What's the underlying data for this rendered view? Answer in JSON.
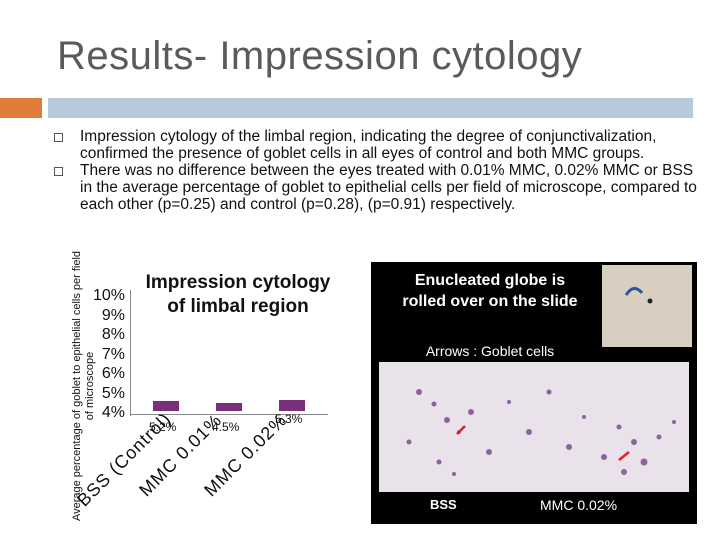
{
  "slide": {
    "title": "Results- Impression cytology",
    "bullets": [
      "Impression cytology of the limbal region, indicating the degree of conjunctivalization, confirmed the presence of goblet cells in all eyes of control and both MMC groups.",
      "There was no difference between the eyes treated with 0.01% MMC, 0.02% MMC or BSS in the average percentage of goblet to epithelial cells per field of microscope, compared to each other (p=0.25) and control (p=0.28), (p=0.91) respectively."
    ]
  },
  "chart_data": {
    "type": "bar",
    "title": "Impression cytology of limbal region",
    "ylabel": "Average percentage of goblet to epithelial cells per field of microscope",
    "yticks": [
      "10%",
      "9%",
      "8%",
      "7%",
      "6%",
      "5%",
      "4%"
    ],
    "ylim": [
      4,
      10
    ],
    "categories": [
      "BSS (Control)",
      "MMC 0.01%",
      "MMC 0.02%"
    ],
    "values": [
      5.2,
      4.5,
      5.3
    ],
    "data_labels": [
      "5.2%",
      "4.5%",
      "5.3%"
    ],
    "bar_color": "#7a2f7a"
  },
  "panel": {
    "caption": "Enucleated globe is rolled over on the slide",
    "arrows_label": "Arrows : Goblet cells",
    "left_label": "BSS",
    "right_label": "MMC 0.02%"
  },
  "colors": {
    "accent_orange": "#e07b39",
    "accent_blue": "#b8c9de"
  }
}
